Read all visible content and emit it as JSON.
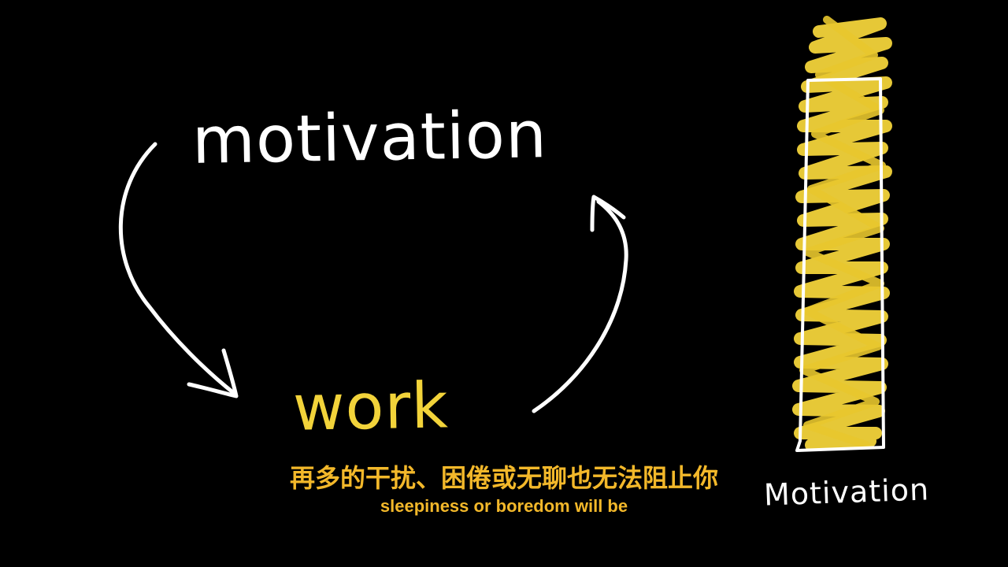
{
  "scene": {
    "top_word": "motivation",
    "bottom_word": "work",
    "meter_label": "Motivation",
    "meter_fill_percent": 100
  },
  "subtitles": {
    "chinese": "再多的干扰、困倦或无聊也无法阻止你",
    "english": "sleepiness or boredom will be"
  },
  "colors": {
    "background": "#000000",
    "chalk_white": "#ffffff",
    "chalk_yellow": "#f2d33a",
    "subtitle": "#f3b82a"
  }
}
